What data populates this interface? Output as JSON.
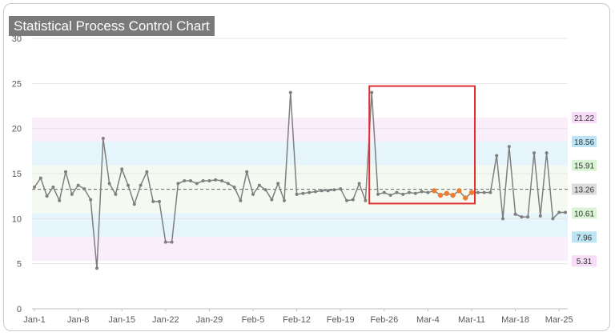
{
  "chart_data": {
    "type": "line",
    "title": "Statistical Process Control Chart",
    "xlabel": "",
    "ylabel": "",
    "ylim": [
      0,
      30
    ],
    "yticks": [
      0,
      5,
      10,
      15,
      20,
      25,
      30
    ],
    "x_tick_labels": [
      "Jan-1",
      "Jan-8",
      "Jan-15",
      "Jan-22",
      "Jan-29",
      "Feb-5",
      "Feb-12",
      "Feb-19",
      "Feb-26",
      "Mar-4",
      "Mar-11",
      "Mar-18",
      "Mar-25"
    ],
    "x_tick_days": [
      0,
      7,
      14,
      21,
      28,
      35,
      42,
      49,
      56,
      63,
      70,
      77,
      84
    ],
    "grid": "horizontal",
    "control_lines": [
      {
        "value": 21.22,
        "label": "21.22",
        "color": "#f6dcf6"
      },
      {
        "value": 18.56,
        "label": "18.56",
        "color": "#bde4f4"
      },
      {
        "value": 15.91,
        "label": "15.91",
        "color": "#d9f3d4"
      },
      {
        "value": 13.26,
        "label": "13.26",
        "color": "#dcdcdc"
      },
      {
        "value": 10.61,
        "label": "10.61",
        "color": "#d9f3d4"
      },
      {
        "value": 7.96,
        "label": "7.96",
        "color": "#bde4f4"
      },
      {
        "value": 5.31,
        "label": "5.31",
        "color": "#f6dcf6"
      }
    ],
    "zone_colors": {
      "inner": "#f4faf1",
      "middle": "#e6f4fb",
      "outer": "#faeefb"
    },
    "center_line": 13.26,
    "line_color": "#7f7f7f",
    "highlight_color": "#ed7d31",
    "highlight_box_color": "#e03030",
    "highlight_range": [
      64,
      70
    ],
    "boxed_range": [
      54,
      70
    ],
    "values": [
      13.5,
      14.5,
      12.5,
      13.5,
      12.0,
      15.2,
      12.7,
      13.7,
      13.3,
      12.1,
      4.5,
      18.9,
      13.9,
      12.7,
      15.5,
      13.7,
      11.6,
      13.7,
      15.2,
      11.9,
      11.9,
      7.4,
      7.4,
      13.9,
      14.2,
      14.2,
      13.9,
      14.2,
      14.2,
      14.3,
      14.2,
      13.9,
      13.5,
      12.0,
      15.2,
      12.7,
      13.7,
      13.2,
      12.1,
      13.9,
      12.0,
      24.0,
      12.7,
      12.8,
      12.9,
      13.0,
      13.1,
      13.1,
      13.2,
      13.3,
      12.0,
      12.1,
      13.9,
      12.0,
      24.0,
      12.7,
      12.9,
      12.6,
      12.9,
      12.7,
      12.9,
      12.8,
      13.0,
      12.9,
      13.1,
      12.6,
      12.8,
      12.6,
      13.1,
      12.3,
      12.9,
      12.9,
      12.9,
      12.9,
      17.0,
      10.0,
      18.0,
      10.5,
      10.2,
      10.2,
      17.3,
      10.3,
      17.3,
      10.0,
      10.7,
      10.7
    ]
  }
}
